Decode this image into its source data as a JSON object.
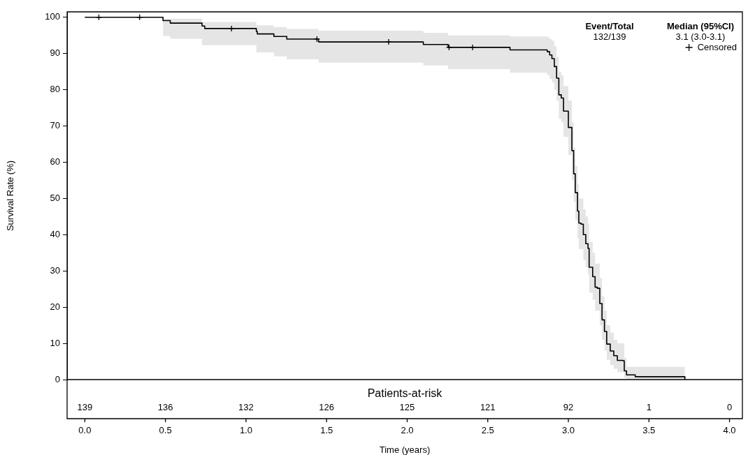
{
  "chart_data": {
    "type": "step",
    "xlabel": "Time (years)",
    "ylabel": "Survival Rate (%)",
    "xlim": [
      -0.11,
      4.08
    ],
    "ylim": [
      0,
      101.5
    ],
    "xticks": [
      {
        "value": 0,
        "label": "0.0"
      },
      {
        "value": 0.5,
        "label": "0.5"
      },
      {
        "value": 1,
        "label": "1.0"
      },
      {
        "value": 1.5,
        "label": "1.5"
      },
      {
        "value": 2,
        "label": "2.0"
      },
      {
        "value": 2.5,
        "label": "2.5"
      },
      {
        "value": 3,
        "label": "3.0"
      },
      {
        "value": 3.5,
        "label": "3.5"
      },
      {
        "value": 4,
        "label": "4.0"
      }
    ],
    "yticks": [
      0,
      10,
      20,
      30,
      40,
      50,
      60,
      70,
      80,
      90,
      100
    ],
    "grid": false,
    "legend": "top right",
    "annotations": [
      "Event/Total",
      "Median (95%CI)",
      "132/139",
      "3.1 (3.0-3.1)",
      "Patients-at-risk",
      "139",
      "136",
      "132",
      "126",
      "125",
      "121",
      "92",
      "1",
      "0"
    ],
    "series": [
      {
        "color": "#000000",
        "line_style": "solid",
        "marker": "none",
        "x": [
          0,
          0.485,
          0.53,
          0.727,
          0.744,
          1.064,
          1.07,
          1.173,
          1.253,
          1.45,
          2.1,
          2.254,
          2.638,
          2.869,
          2.884,
          2.898,
          2.913,
          2.927,
          2.941,
          2.956,
          2.97,
          3.0,
          3.022,
          3.033,
          3.043,
          3.057,
          3.065,
          3.079,
          3.093,
          3.108,
          3.122,
          3.129,
          3.151,
          3.166,
          3.18,
          3.195,
          3.209,
          3.224,
          3.238,
          3.26,
          3.282,
          3.304,
          3.339,
          3.347,
          3.361,
          3.415,
          3.723
        ],
        "values": [
          100,
          99.1,
          98.4,
          97.6,
          96.9,
          96.1,
          95.4,
          94.7,
          94.0,
          93.2,
          92.5,
          91.7,
          91.0,
          90.5,
          89.6,
          88.6,
          86.4,
          83.2,
          78.6,
          77.7,
          74.1,
          69.6,
          63.2,
          56.8,
          51.6,
          46.5,
          43.2,
          42.9,
          40.0,
          37.5,
          36.2,
          31.0,
          28.4,
          25.5,
          25.2,
          21.0,
          16.5,
          13.3,
          9.8,
          7.9,
          6.6,
          5.3,
          5.2,
          2.4,
          1.3,
          0.8,
          0
        ],
        "upper": [
          100,
          99.6,
          99.6,
          98.7,
          98.7,
          97.8,
          97.8,
          97.3,
          96.8,
          96.3,
          95.7,
          95.0,
          94.7,
          94.5,
          94,
          93.5,
          92,
          89,
          85,
          84,
          81,
          77,
          71,
          64,
          59,
          54,
          50,
          50,
          47,
          45,
          43,
          38,
          35,
          32,
          32,
          28,
          23,
          19,
          15,
          13,
          11,
          10,
          10,
          6,
          3.5,
          3.5,
          0
        ],
        "lower": [
          100,
          94.8,
          94.1,
          92.3,
          92.3,
          90.3,
          90.3,
          89.2,
          88.4,
          87.5,
          86.7,
          85.7,
          84.7,
          84,
          83,
          82,
          80,
          77,
          72,
          71,
          67,
          62,
          55,
          49,
          44,
          39,
          36,
          36,
          33,
          31,
          29,
          24,
          22,
          19,
          19,
          15,
          11,
          8,
          5.5,
          4,
          3,
          2,
          2,
          0.5,
          0.2,
          0.1,
          0
        ]
      },
      {
        "type": "scatter",
        "name": "Censored",
        "color": "#000000",
        "marker": "cross",
        "x": [
          0.087,
          0.34,
          0.91,
          1.44,
          1.885,
          2.26,
          2.406
        ],
        "values": [
          100,
          100,
          96.9,
          94.0,
          93.2,
          91.7,
          91.7
        ]
      }
    ]
  }
}
